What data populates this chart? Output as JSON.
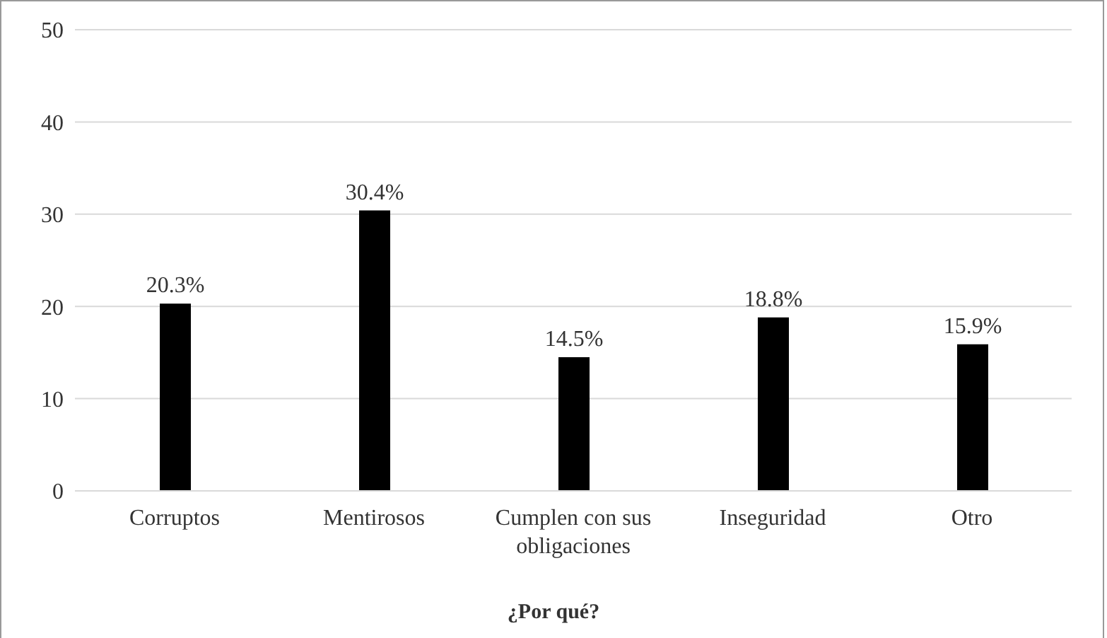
{
  "chart_data": {
    "type": "bar",
    "xlabel": "¿Por qué?",
    "categories": [
      "Corruptos",
      "Mentirosos",
      "Cumplen con sus obligaciones",
      "Inseguridad",
      "Otro"
    ],
    "values": [
      20.3,
      30.4,
      14.5,
      18.8,
      15.9
    ],
    "value_labels": [
      "20.3%",
      "30.4%",
      "14.5%",
      "18.8%",
      "15.9%"
    ],
    "color": "#000000",
    "ylim": [
      0,
      50
    ],
    "yticks": [
      0,
      10,
      20,
      30,
      40,
      50
    ],
    "grid": "y",
    "legend": false
  }
}
